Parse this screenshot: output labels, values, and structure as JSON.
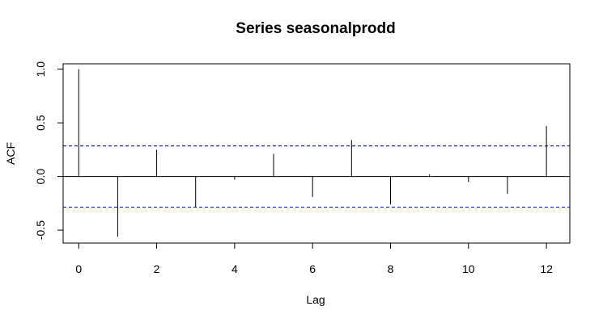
{
  "chart_data": {
    "type": "bar",
    "title": "Series  seasonalprodd",
    "xlabel": "Lag",
    "ylabel": "ACF",
    "x": [
      0,
      1,
      2,
      3,
      4,
      5,
      6,
      7,
      8,
      9,
      10,
      11,
      12
    ],
    "values": [
      1.0,
      -0.56,
      0.25,
      -0.29,
      -0.03,
      0.21,
      -0.19,
      0.34,
      -0.26,
      0.02,
      -0.05,
      -0.16,
      0.47
    ],
    "confidence_bound": 0.285,
    "xlim": [
      -0.4,
      12.6
    ],
    "ylim": [
      -0.62,
      1.05
    ],
    "x_ticks": [
      0,
      2,
      4,
      6,
      8,
      10,
      12
    ],
    "x_tick_labels": [
      "0",
      "2",
      "4",
      "6",
      "8",
      "10",
      "12"
    ],
    "y_ticks": [
      -0.5,
      0.0,
      0.5,
      1.0
    ],
    "y_tick_labels": [
      "-0.5",
      "0.0",
      "0.5",
      "1.0"
    ],
    "grid": false,
    "colors": {
      "bars": "#000000",
      "zero_line": "#000000",
      "confidence": "#0000cc"
    }
  }
}
